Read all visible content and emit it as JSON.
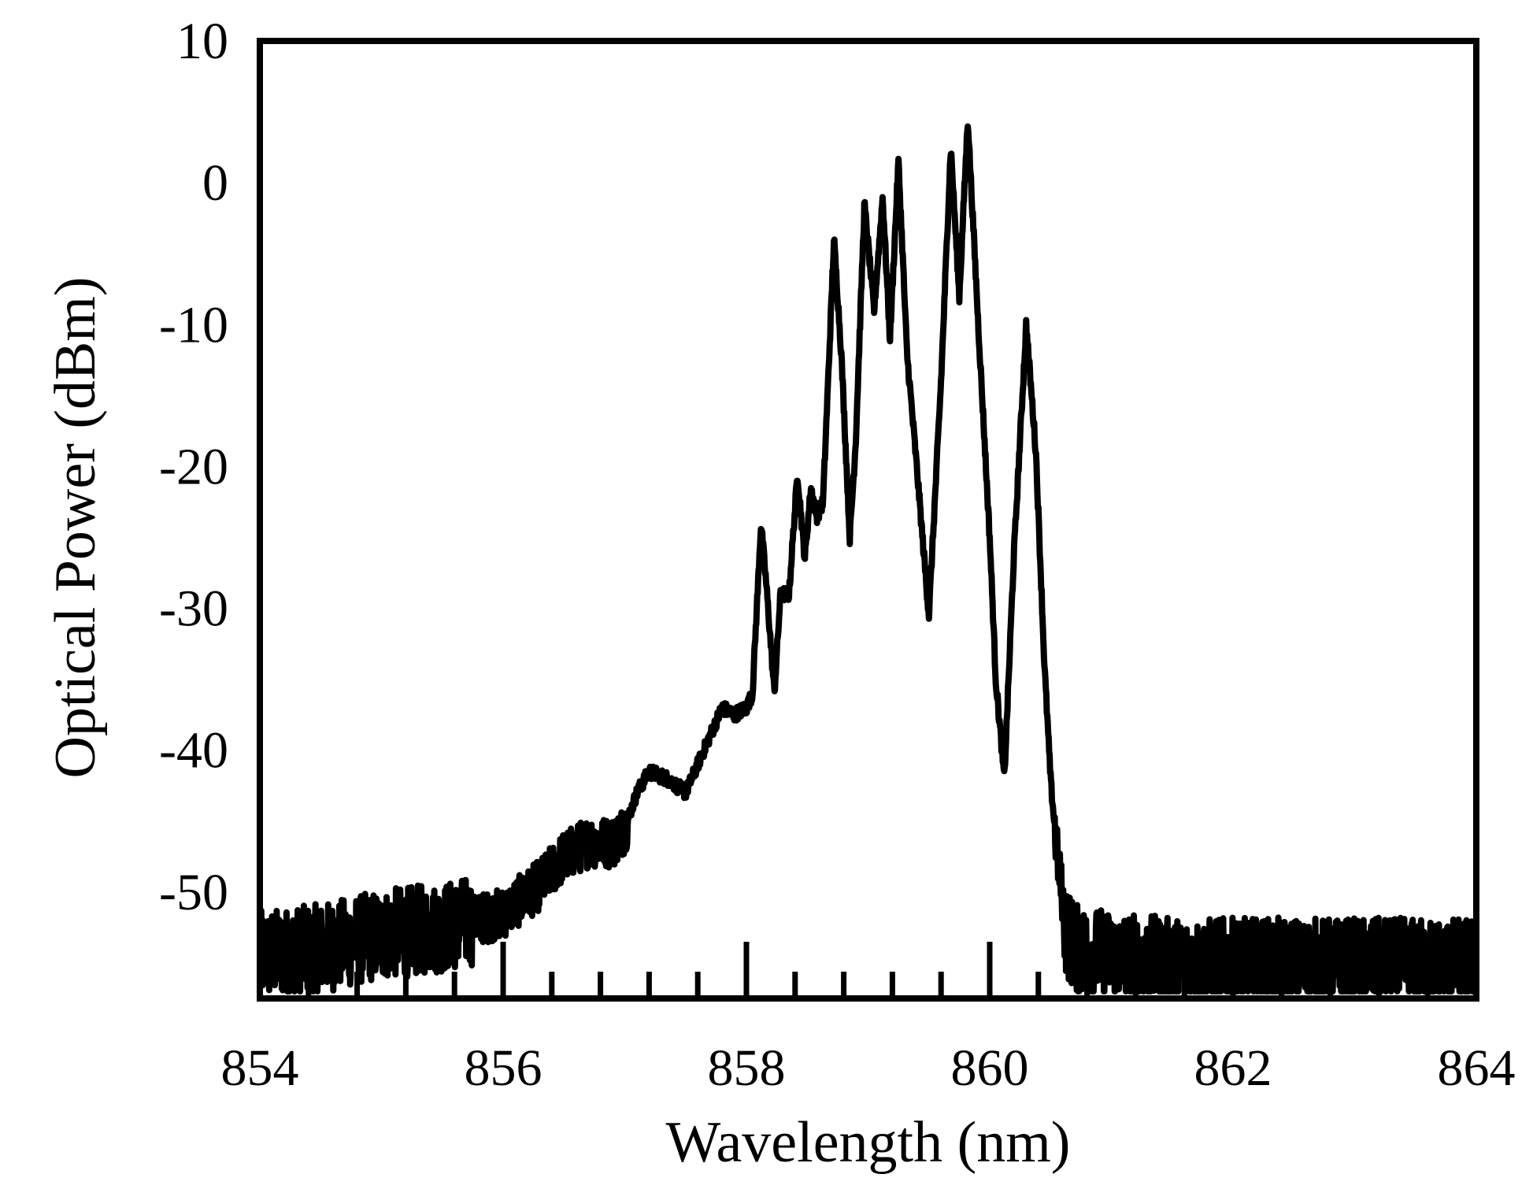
{
  "chart_data": {
    "type": "line",
    "title": "",
    "xlabel": "Wavelength (nm)",
    "ylabel": "Optical Power (dBm)",
    "xlim": [
      854,
      864
    ],
    "ylim": [
      -57.5,
      10
    ],
    "xticks": [
      854,
      856,
      858,
      860,
      862,
      864
    ],
    "yticks": [
      10,
      0,
      -10,
      -20,
      -30,
      -40,
      -50
    ],
    "grid": false,
    "legend": "none",
    "line_color": "#000000",
    "noise_floor_dBm": -55,
    "series": [
      {
        "x": [
          854.0,
          854.5,
          855.0,
          855.5,
          856.0,
          856.3,
          856.5,
          856.7,
          856.9,
          857.0,
          857.1,
          857.2,
          857.35,
          857.5,
          857.6,
          857.7,
          857.8,
          857.9,
          858.0,
          858.05,
          858.12,
          858.17,
          858.23,
          858.28,
          858.35,
          858.42,
          858.48,
          858.53,
          858.58,
          858.63,
          858.72,
          858.78,
          858.85,
          858.9,
          858.97,
          859.05,
          859.12,
          859.18,
          859.25,
          859.32,
          859.4,
          859.5,
          859.6,
          859.68,
          859.75,
          859.82,
          859.9,
          860.0,
          860.05,
          860.12,
          860.2,
          860.3,
          860.38,
          860.45,
          860.5,
          860.55,
          860.6,
          860.62,
          860.7,
          861.0,
          861.5,
          862.0,
          862.5,
          863.0,
          863.5,
          864.0
        ],
        "y": [
          -54.5,
          -54.0,
          -53.0,
          -52.5,
          -51.5,
          -49.5,
          -47.5,
          -46.5,
          -46.5,
          -45.5,
          -43.0,
          -41.5,
          -42.0,
          -43.0,
          -41.0,
          -39.0,
          -37.0,
          -37.5,
          -37.0,
          -36.0,
          -24.0,
          -29.0,
          -36.0,
          -29.0,
          -29.0,
          -20.5,
          -26.5,
          -21.5,
          -23.5,
          -22.5,
          -4.0,
          -12.0,
          -25.0,
          -18.0,
          -1.5,
          -9.0,
          -1.0,
          -11.0,
          1.5,
          -12.0,
          -20.0,
          -30.5,
          -14.0,
          2.5,
          -8.0,
          4.5,
          -9.0,
          -25.0,
          -35.0,
          -42.0,
          -26.0,
          -10.0,
          -19.0,
          -34.0,
          -42.0,
          -47.0,
          -50.5,
          -52.5,
          -54.0,
          -54.5,
          -55.0,
          -55.0,
          -55.0,
          -55.0,
          -55.0,
          -55.0
        ]
      }
    ]
  }
}
